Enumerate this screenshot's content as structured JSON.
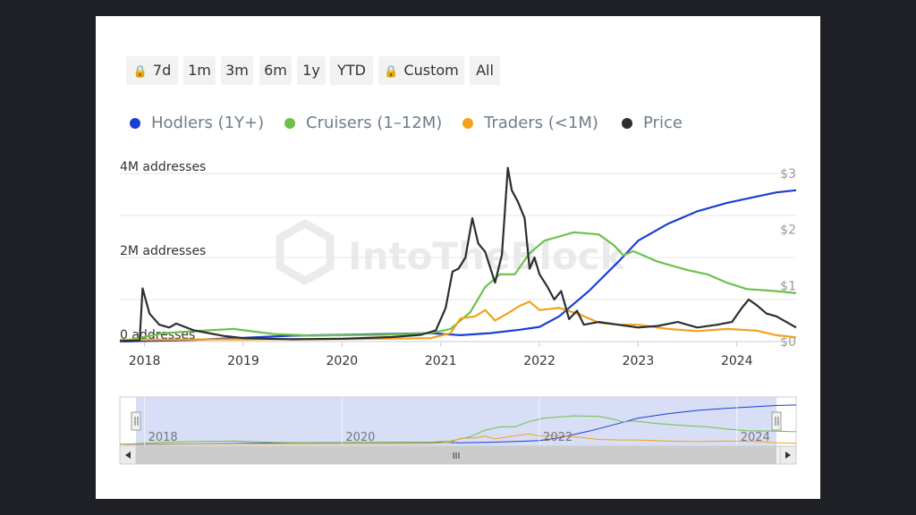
{
  "range_buttons": [
    {
      "label": "7d",
      "locked": true
    },
    {
      "label": "1m",
      "locked": false
    },
    {
      "label": "3m",
      "locked": false
    },
    {
      "label": "6m",
      "locked": false
    },
    {
      "label": "1y",
      "locked": false
    },
    {
      "label": "YTD",
      "locked": false
    },
    {
      "label": "Custom",
      "locked": true
    },
    {
      "label": "All",
      "locked": false
    }
  ],
  "watermark": "IntoTheBlock",
  "navigator": {
    "scroll_grip": "III"
  },
  "chart_data": {
    "type": "line",
    "title": "",
    "xlabel": "",
    "ylabel": "",
    "x_ticks": [
      "2018",
      "2019",
      "2020",
      "2021",
      "2022",
      "2023",
      "2024"
    ],
    "y_left": {
      "ticks": [
        "0 addresses",
        "2M addresses",
        "4M addresses"
      ],
      "range": [
        0,
        4000000
      ],
      "unit": "addresses"
    },
    "y_right": {
      "ticks": [
        "$0",
        "$1",
        "$2",
        "$3"
      ],
      "range": [
        0,
        3
      ],
      "unit": "USD"
    },
    "x_range": [
      2017.75,
      2024.6
    ],
    "grid": true,
    "legend_position": "top-left",
    "legend": [
      {
        "name": "Hodlers (1Y+)",
        "color": "#1a3fd4"
      },
      {
        "name": "Cruisers (1–12M)",
        "color": "#6cc14a"
      },
      {
        "name": "Traders (<1M)",
        "color": "#f2a21b"
      },
      {
        "name": "Price",
        "color": "#2b2e33"
      }
    ],
    "series": [
      {
        "name": "Hodlers (1Y+)",
        "axis": "left",
        "color": "#1a3fd4",
        "x": [
          2017.75,
          2018.5,
          2019.0,
          2019.5,
          2020.0,
          2020.5,
          2020.9,
          2021.2,
          2021.5,
          2021.8,
          2022.0,
          2022.2,
          2022.5,
          2022.8,
          2023.0,
          2023.3,
          2023.6,
          2023.9,
          2024.2,
          2024.4,
          2024.6
        ],
        "y": [
          0,
          40000,
          90000,
          140000,
          160000,
          180000,
          200000,
          150000,
          200000,
          280000,
          350000,
          600000,
          1200000,
          1900000,
          2400000,
          2800000,
          3100000,
          3300000,
          3450000,
          3550000,
          3600000
        ]
      },
      {
        "name": "Cruisers (1–12M)",
        "axis": "left",
        "color": "#6cc14a",
        "x": [
          2017.75,
          2018.2,
          2018.5,
          2018.9,
          2019.3,
          2019.7,
          2020.0,
          2020.4,
          2020.9,
          2021.1,
          2021.3,
          2021.45,
          2021.6,
          2021.75,
          2021.9,
          2022.05,
          2022.2,
          2022.35,
          2022.6,
          2022.75,
          2022.85,
          2022.95,
          2023.2,
          2023.5,
          2023.7,
          2023.9,
          2024.1,
          2024.4,
          2024.6
        ],
        "y": [
          0,
          200000,
          250000,
          300000,
          180000,
          140000,
          150000,
          160000,
          200000,
          300000,
          700000,
          1300000,
          1600000,
          1600000,
          2100000,
          2400000,
          2500000,
          2600000,
          2550000,
          2300000,
          2050000,
          2150000,
          1900000,
          1700000,
          1600000,
          1400000,
          1250000,
          1200000,
          1150000
        ]
      },
      {
        "name": "Traders (<1M)",
        "axis": "left",
        "color": "#f2a21b",
        "x": [
          2017.75,
          2018.5,
          2019.0,
          2019.5,
          2020.0,
          2020.5,
          2020.9,
          2021.1,
          2021.2,
          2021.35,
          2021.45,
          2021.55,
          2021.7,
          2021.8,
          2021.9,
          2022.0,
          2022.2,
          2022.4,
          2022.6,
          2022.8,
          2023.0,
          2023.3,
          2023.6,
          2023.9,
          2024.2,
          2024.4,
          2024.6
        ],
        "y": [
          40000,
          50000,
          50000,
          60000,
          60000,
          70000,
          80000,
          200000,
          550000,
          600000,
          750000,
          500000,
          700000,
          850000,
          950000,
          750000,
          800000,
          650000,
          450000,
          400000,
          400000,
          300000,
          250000,
          300000,
          260000,
          150000,
          100000
        ]
      },
      {
        "name": "Price",
        "axis": "right",
        "color": "#2b2e33",
        "x": [
          2017.75,
          2017.95,
          2017.98,
          2018.05,
          2018.15,
          2018.25,
          2018.32,
          2018.5,
          2018.8,
          2019.0,
          2019.5,
          2020.0,
          2020.5,
          2020.8,
          2020.95,
          2021.05,
          2021.12,
          2021.18,
          2021.25,
          2021.32,
          2021.38,
          2021.45,
          2021.55,
          2021.62,
          2021.68,
          2021.72,
          2021.78,
          2021.85,
          2021.9,
          2021.95,
          2022.0,
          2022.08,
          2022.15,
          2022.22,
          2022.3,
          2022.38,
          2022.45,
          2022.6,
          2022.8,
          2023.0,
          2023.2,
          2023.4,
          2023.6,
          2023.8,
          2023.95,
          2024.05,
          2024.12,
          2024.2,
          2024.3,
          2024.4,
          2024.5,
          2024.6
        ],
        "y": [
          0.01,
          0.02,
          0.95,
          0.5,
          0.3,
          0.25,
          0.32,
          0.2,
          0.1,
          0.06,
          0.04,
          0.05,
          0.08,
          0.12,
          0.2,
          0.6,
          1.25,
          1.3,
          1.5,
          2.2,
          1.75,
          1.6,
          1.05,
          1.55,
          3.1,
          2.7,
          2.5,
          2.2,
          1.3,
          1.5,
          1.2,
          0.98,
          0.75,
          0.9,
          0.4,
          0.55,
          0.3,
          0.35,
          0.3,
          0.25,
          0.28,
          0.35,
          0.25,
          0.3,
          0.35,
          0.6,
          0.75,
          0.65,
          0.5,
          0.45,
          0.35,
          0.25
        ]
      }
    ]
  }
}
